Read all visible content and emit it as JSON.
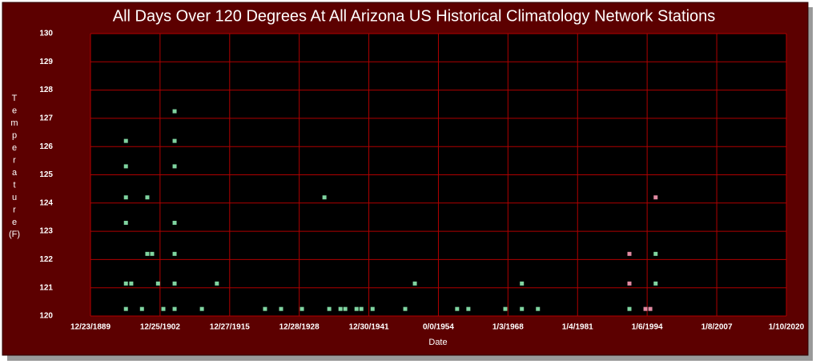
{
  "chart_data": {
    "type": "scatter",
    "title": "All Days Over 120 Degrees At All Arizona US Historical Climatology Network Stations",
    "x_label": "Date",
    "y_label": "Temperature",
    "y_label_unit": "(F)",
    "xlim": [
      1889.98,
      2020.03
    ],
    "xticks": [
      {
        "value": 1889.98,
        "label": "12/23/1889"
      },
      {
        "value": 1902.98,
        "label": "12/25/1902"
      },
      {
        "value": 1915.99,
        "label": "12/27/1915"
      },
      {
        "value": 1928.99,
        "label": "12/28/1928"
      },
      {
        "value": 1942.0,
        "label": "12/30/1941"
      },
      {
        "value": 1955.0,
        "label": "0/0/1954"
      },
      {
        "value": 1968.0,
        "label": "1/3/1968"
      },
      {
        "value": 1981.01,
        "label": "1/4/1981"
      },
      {
        "value": 1994.01,
        "label": "1/6/1994"
      },
      {
        "value": 2007.02,
        "label": "1/8/2007"
      },
      {
        "value": 2020.03,
        "label": "1/10/2020"
      }
    ],
    "ylim": [
      120,
      130
    ],
    "yticks": [
      120,
      121,
      122,
      123,
      124,
      125,
      126,
      127,
      128,
      129,
      130
    ],
    "grid": true,
    "series": [
      {
        "color": "#7fd4a0",
        "x": [
          1896.6,
          1896.6,
          1896.6,
          1896.6,
          1896.6,
          1896.6,
          1897.6,
          1899.6,
          1900.6,
          1900.6,
          1901.5,
          1902.6,
          1903.6,
          1905.7,
          1905.7,
          1905.7,
          1905.7,
          1905.7,
          1905.7,
          1905.7,
          1910.8,
          1913.6,
          1922.6,
          1925.6,
          1929.5,
          1933.7,
          1934.6,
          1936.7,
          1937.6,
          1939.7,
          1940.6,
          1942.7,
          1948.8,
          1950.6,
          1958.5,
          1960.6,
          1967.5,
          1970.6,
          1970.6,
          1973.6,
          1990.7,
          1995.6,
          1995.6
        ],
        "values": [
          120.25,
          121.15,
          123.3,
          124.2,
          125.3,
          126.2,
          121.15,
          120.25,
          124.2,
          122.2,
          122.2,
          121.15,
          120.25,
          120.25,
          121.15,
          122.2,
          123.3,
          125.3,
          126.2,
          127.25,
          120.25,
          121.15,
          120.25,
          120.25,
          120.25,
          124.2,
          120.25,
          120.25,
          120.25,
          120.25,
          120.25,
          120.25,
          120.25,
          121.15,
          120.25,
          120.25,
          120.25,
          120.25,
          121.15,
          120.25,
          120.25,
          122.2,
          121.15
        ]
      },
      {
        "color": "#e28aa2",
        "x": [
          1990.7,
          1990.7,
          1993.7,
          1994.6,
          1995.6
        ],
        "values": [
          122.2,
          121.15,
          120.25,
          120.25,
          124.2
        ]
      }
    ]
  }
}
